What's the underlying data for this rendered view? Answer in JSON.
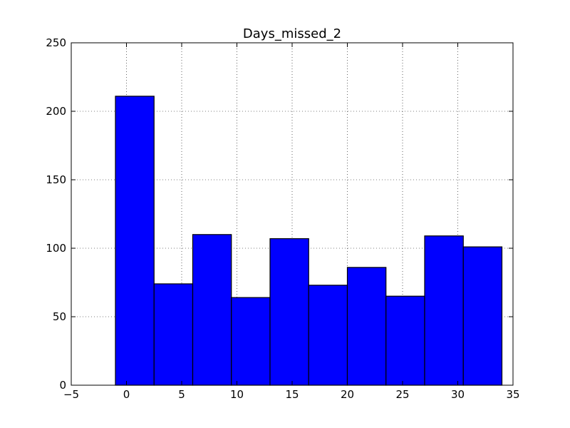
{
  "chart_data": {
    "type": "bar",
    "title": "Days_missed_2",
    "xlabel": "",
    "ylabel": "",
    "xlim": [
      -5,
      35
    ],
    "ylim": [
      0,
      250
    ],
    "xticks": [
      -5,
      0,
      5,
      10,
      15,
      20,
      25,
      30,
      35
    ],
    "yticks": [
      0,
      50,
      100,
      150,
      200,
      250
    ],
    "grid": true,
    "bins": [
      {
        "x0": -1.0,
        "x1": 2.5,
        "value": 211
      },
      {
        "x0": 2.5,
        "x1": 6.0,
        "value": 74
      },
      {
        "x0": 6.0,
        "x1": 9.5,
        "value": 110
      },
      {
        "x0": 9.5,
        "x1": 13.0,
        "value": 64
      },
      {
        "x0": 13.0,
        "x1": 16.5,
        "value": 107
      },
      {
        "x0": 16.5,
        "x1": 20.0,
        "value": 73
      },
      {
        "x0": 20.0,
        "x1": 23.5,
        "value": 86
      },
      {
        "x0": 23.5,
        "x1": 27.0,
        "value": 65
      },
      {
        "x0": 27.0,
        "x1": 30.5,
        "value": 109
      },
      {
        "x0": 30.5,
        "x1": 34.0,
        "value": 101
      }
    ],
    "bar_color": "#0000ff",
    "edge_color": "#000000"
  }
}
